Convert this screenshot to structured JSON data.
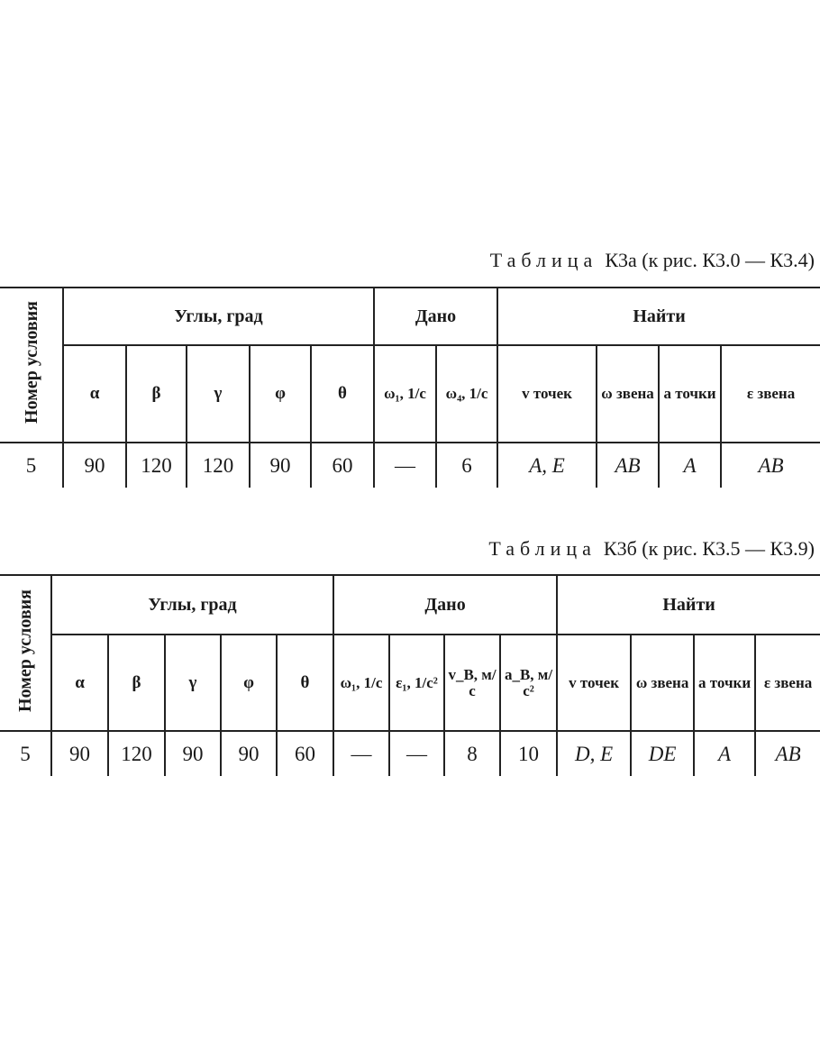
{
  "table_a": {
    "title_word": "Таблица",
    "title_rest": "К3а (к рис. К3.0 — К3.4)",
    "col_number": "Номер условия",
    "group_angles": "Углы, град",
    "group_given": "Дано",
    "group_find": "Найти",
    "headers": [
      "α",
      "β",
      "γ",
      "φ",
      "θ",
      "ω₁, 1/с",
      "ω₄, 1/с",
      "v точек",
      "ω звена",
      "a точки",
      "ε звена"
    ],
    "row": {
      "number": "5",
      "values": [
        "90",
        "120",
        "120",
        "90",
        "60",
        "—",
        "6",
        "A, E",
        "AB",
        "A",
        "AB"
      ]
    }
  },
  "table_b": {
    "title_word": "Таблица",
    "title_rest": "К3б (к рис. К3.5 — К3.9)",
    "col_number": "Номер условия",
    "group_angles": "Углы, град",
    "group_given": "Дано",
    "group_find": "Найти",
    "headers": [
      "α",
      "β",
      "γ",
      "φ",
      "θ",
      "ω₁, 1/с",
      "ε₁, 1/с²",
      "v_B, м/с",
      "a_B, м/с²",
      "v точек",
      "ω звена",
      "a точки",
      "ε звена"
    ],
    "row": {
      "number": "5",
      "values": [
        "90",
        "120",
        "90",
        "90",
        "60",
        "—",
        "—",
        "8",
        "10",
        "D, E",
        "DE",
        "A",
        "AB"
      ]
    }
  }
}
